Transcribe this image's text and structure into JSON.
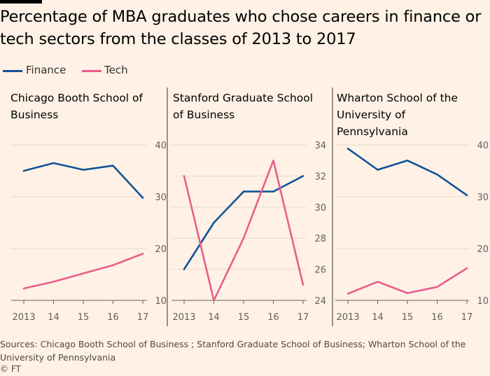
{
  "title": "Percentage of MBA graduates who chose careers in finance or tech sectors from the classes of 2013 to 2017",
  "legend": [
    {
      "name": "Finance",
      "color": "#0f5499"
    },
    {
      "name": "Tech",
      "color": "#e95d8c"
    }
  ],
  "source": "Sources: Chicago Booth School of Business ; Stanford Graduate School of Business; Wharton School of the University of Pennsylvania",
  "copyright": "© FT",
  "chart_data": [
    {
      "type": "line",
      "title": "Chicago Booth School of Business",
      "x": [
        "2013",
        "14",
        "15",
        "16",
        "17"
      ],
      "ylim": [
        10,
        40
      ],
      "yticks": [
        10,
        20,
        30,
        40
      ],
      "grid": true,
      "series": [
        {
          "name": "Finance",
          "values": [
            35.0,
            36.5,
            35.2,
            36.0,
            29.8
          ]
        },
        {
          "name": "Tech",
          "values": [
            12.3,
            13.6,
            15.2,
            16.8,
            19.0
          ]
        }
      ]
    },
    {
      "type": "line",
      "title": "Stanford Graduate School of Business",
      "x": [
        "2013",
        "14",
        "15",
        "16",
        "17"
      ],
      "ylim": [
        24,
        34
      ],
      "yticks": [
        24,
        26,
        28,
        30,
        32,
        34
      ],
      "grid": true,
      "series": [
        {
          "name": "Finance",
          "values": [
            26.0,
            29.0,
            31.0,
            31.0,
            32.0
          ]
        },
        {
          "name": "Tech",
          "values": [
            32.0,
            24.0,
            28.0,
            33.0,
            25.0
          ]
        }
      ]
    },
    {
      "type": "line",
      "title": "Wharton School of the University of Pennsylvania",
      "x": [
        "2013",
        "14",
        "15",
        "16",
        "17"
      ],
      "ylim": [
        10,
        40
      ],
      "yticks": [
        10,
        20,
        30,
        40
      ],
      "grid": true,
      "series": [
        {
          "name": "Finance",
          "values": [
            39.3,
            35.2,
            37.0,
            34.3,
            30.3
          ]
        },
        {
          "name": "Tech",
          "values": [
            11.3,
            13.6,
            11.4,
            12.6,
            16.2
          ]
        }
      ]
    }
  ]
}
